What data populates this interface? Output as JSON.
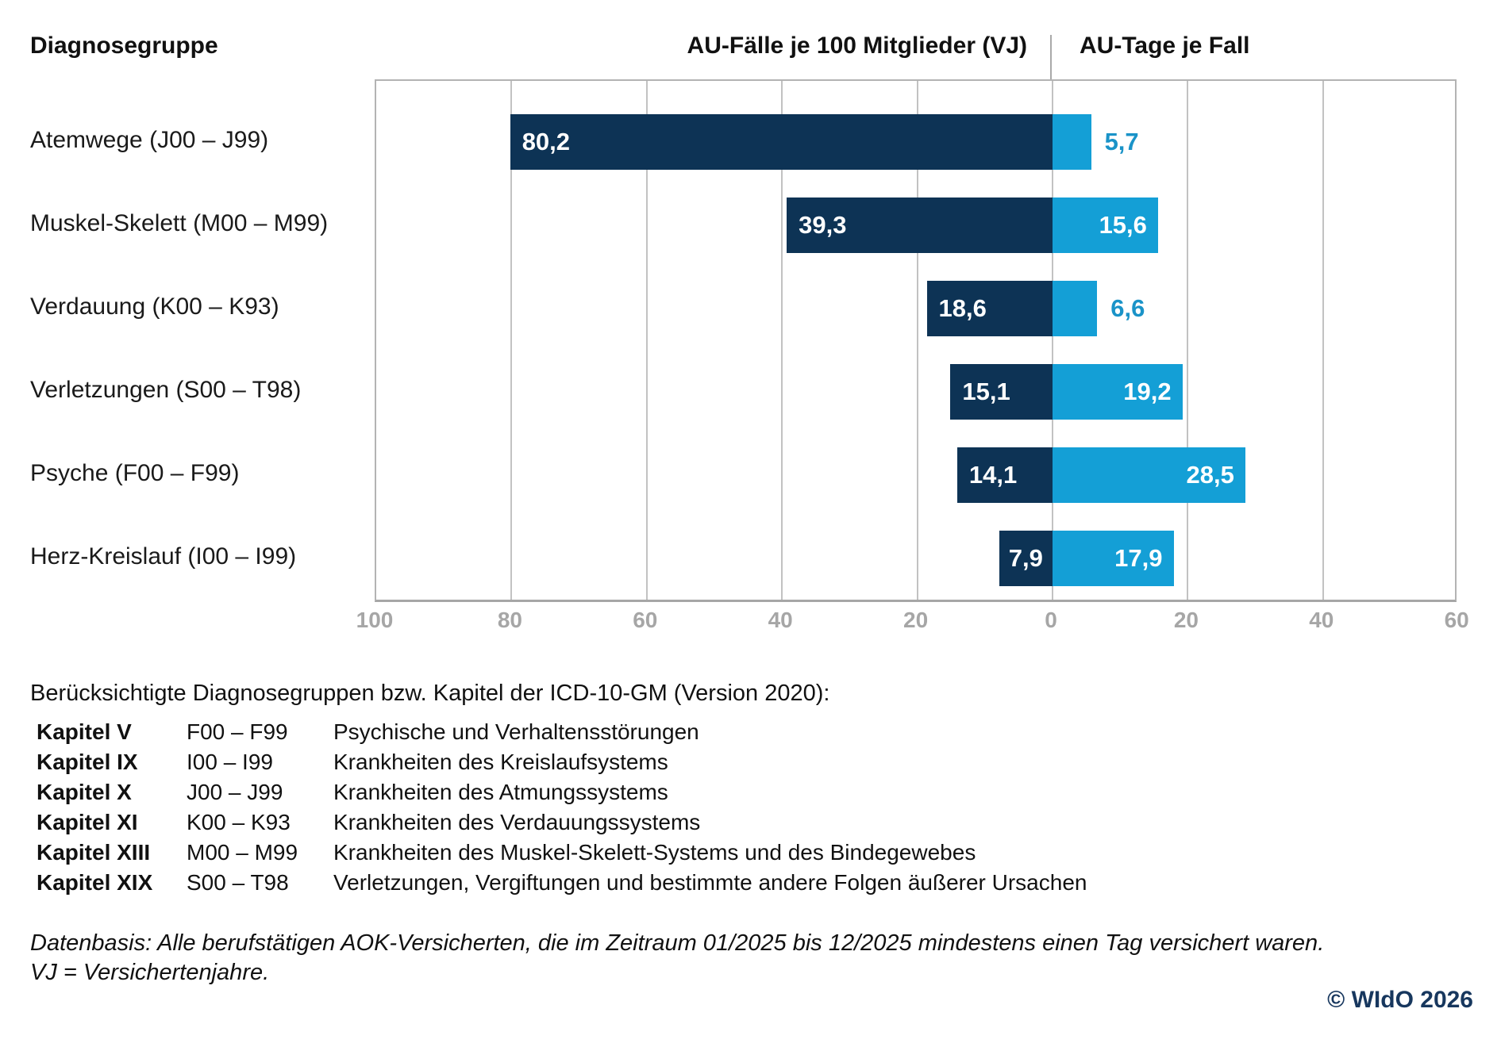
{
  "header": {
    "diagnosegruppe": "Diagnosegruppe",
    "faelle": "AU-Fälle je 100 Mitglieder (VJ)",
    "tage": "AU-Tage je Fall"
  },
  "chart_data": {
    "type": "bar",
    "orientation": "horizontal-diverging",
    "title": "",
    "categories": [
      "Atemwege (J00 – J99)",
      "Muskel-Skelett (M00 – M99)",
      "Verdauung (K00 – K93)",
      "Verletzungen (S00 – T98)",
      "Psyche (F00 – F99)",
      "Herz-Kreislauf (I00 – I99)"
    ],
    "series": [
      {
        "name": "AU-Fälle je 100 Mitglieder (VJ)",
        "direction": "left",
        "color": "#0d3355",
        "values": [
          80.2,
          39.3,
          18.6,
          15.1,
          14.1,
          7.9
        ],
        "labels": [
          "80,2",
          "39,3",
          "18,6",
          "15,1",
          "14,1",
          "7,9"
        ]
      },
      {
        "name": "AU-Tage je Fall",
        "direction": "right",
        "color": "#149fd6",
        "values": [
          5.7,
          15.6,
          6.6,
          19.2,
          28.5,
          17.9
        ],
        "labels": [
          "5,7",
          "15,6",
          "6,6",
          "19,2",
          "28,5",
          "17,9"
        ]
      }
    ],
    "axis": {
      "left_max": 100,
      "right_max": 60,
      "tick_step": 20,
      "ticks": [
        "100",
        "80",
        "60",
        "40",
        "20",
        "0",
        "20",
        "40",
        "60"
      ]
    },
    "grid": true,
    "colors": {
      "grid": "#c2c2c2",
      "axis_text": "#a6a6a6",
      "outside_label": "#1a93c8",
      "bar_text": "#ffffff"
    }
  },
  "footnote": {
    "heading": "Berücksichtigte Diagnosegruppen bzw. Kapitel der ICD-10-GM (Version 2020):",
    "rows": [
      {
        "kapitel": "Kapitel V",
        "code": "F00 – F99",
        "text": "Psychische und Verhaltensstörungen"
      },
      {
        "kapitel": "Kapitel IX",
        "code": "I00 – I99",
        "text": "Krankheiten des Kreislaufsystems"
      },
      {
        "kapitel": "Kapitel X",
        "code": "J00 – J99",
        "text": "Krankheiten des Atmungssystems"
      },
      {
        "kapitel": "Kapitel XI",
        "code": "K00 – K93",
        "text": "Krankheiten des Verdauungssystems"
      },
      {
        "kapitel": "Kapitel XIII",
        "code": "M00 – M99",
        "text": "Krankheiten des Muskel-Skelett-Systems und des Bindegewebes"
      },
      {
        "kapitel": "Kapitel XIX",
        "code": "S00 – T98",
        "text": "Verletzungen, Vergiftungen und bestimmte andere Folgen äußerer Ursachen"
      }
    ]
  },
  "datenbasis": {
    "line1": "Datenbasis: Alle berufstätigen AOK-Versicherten, die im Zeitraum 01/2025 bis 12/2025 mindestens einen Tag versichert waren.",
    "line2": "VJ = Versichertenjahre."
  },
  "copyright": "© WIdO 2026"
}
